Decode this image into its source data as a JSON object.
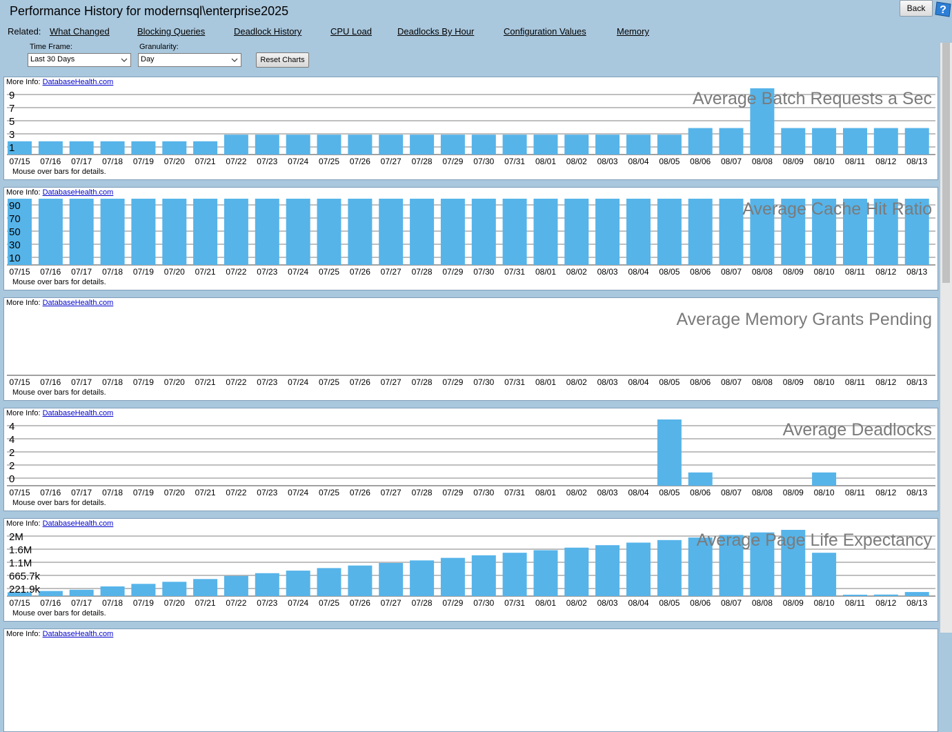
{
  "header": {
    "title": "Performance History for modernsql\\enterprise2025",
    "back_label": "Back",
    "related_label": "Related:",
    "related_links": [
      "What Changed",
      "Blocking Queries",
      "Deadlock History",
      "CPU Load",
      "Deadlocks By Hour",
      "Configuration Values",
      "Memory"
    ]
  },
  "filters": {
    "time_frame_label": "Time Frame:",
    "time_frame_value": "Last 30 Days",
    "granularity_label": "Granularity:",
    "granularity_value": "Day",
    "reset_label": "Reset Charts"
  },
  "panel_common": {
    "more_info_label": "More Info:",
    "more_info_link": "DatabaseHealth.com",
    "mouse_over_text": "Mouse over bars for details."
  },
  "colors": {
    "bar": "#56b4e9",
    "gridline": "#000000",
    "title": "#7b7b7b"
  },
  "chart_data": [
    {
      "type": "bar",
      "title": "Average Batch Requests a Sec",
      "categories": [
        "07/15",
        "07/16",
        "07/17",
        "07/18",
        "07/19",
        "07/20",
        "07/21",
        "07/22",
        "07/23",
        "07/24",
        "07/25",
        "07/26",
        "07/27",
        "07/28",
        "07/29",
        "07/30",
        "07/31",
        "08/01",
        "08/02",
        "08/03",
        "08/04",
        "08/05",
        "08/06",
        "08/07",
        "08/08",
        "08/09",
        "08/10",
        "08/11",
        "08/12",
        "08/13"
      ],
      "values": [
        2,
        2,
        2,
        2,
        2,
        2,
        2,
        3,
        3,
        3,
        3,
        3,
        3,
        3,
        3,
        3,
        3,
        3,
        3,
        3,
        3,
        3,
        4,
        4,
        10,
        4,
        4,
        4,
        4,
        4
      ],
      "y_ticks": [
        "1",
        "3",
        "5",
        "7",
        "9"
      ],
      "ylim": [
        0,
        10
      ],
      "grid": true
    },
    {
      "type": "bar",
      "title": "Average Cache Hit Ratio",
      "categories": [
        "07/15",
        "07/16",
        "07/17",
        "07/18",
        "07/19",
        "07/20",
        "07/21",
        "07/22",
        "07/23",
        "07/24",
        "07/25",
        "07/26",
        "07/27",
        "07/28",
        "07/29",
        "07/30",
        "07/31",
        "08/01",
        "08/02",
        "08/03",
        "08/04",
        "08/05",
        "08/06",
        "08/07",
        "08/08",
        "08/09",
        "08/10",
        "08/11",
        "08/12",
        "08/13"
      ],
      "values": [
        100,
        100,
        100,
        100,
        100,
        100,
        100,
        100,
        100,
        100,
        100,
        100,
        100,
        100,
        100,
        100,
        100,
        100,
        100,
        100,
        100,
        100,
        100,
        100,
        100,
        100,
        100,
        100,
        100,
        100
      ],
      "y_ticks": [
        "10",
        "30",
        "50",
        "70",
        "90"
      ],
      "ylim": [
        0,
        100
      ],
      "grid": true
    },
    {
      "type": "bar",
      "title": "Average Memory Grants Pending",
      "categories": [
        "07/15",
        "07/16",
        "07/17",
        "07/18",
        "07/19",
        "07/20",
        "07/21",
        "07/22",
        "07/23",
        "07/24",
        "07/25",
        "07/26",
        "07/27",
        "07/28",
        "07/29",
        "07/30",
        "07/31",
        "08/01",
        "08/02",
        "08/03",
        "08/04",
        "08/05",
        "08/06",
        "08/07",
        "08/08",
        "08/09",
        "08/10",
        "08/11",
        "08/12",
        "08/13"
      ],
      "values": [
        0,
        0,
        0,
        0,
        0,
        0,
        0,
        0,
        0,
        0,
        0,
        0,
        0,
        0,
        0,
        0,
        0,
        0,
        0,
        0,
        0,
        0,
        0,
        0,
        0,
        0,
        0,
        0,
        0,
        0
      ],
      "y_ticks": [],
      "ylim": [
        0,
        1
      ],
      "grid": false
    },
    {
      "type": "bar",
      "title": "Average Deadlocks",
      "categories": [
        "07/15",
        "07/16",
        "07/17",
        "07/18",
        "07/19",
        "07/20",
        "07/21",
        "07/22",
        "07/23",
        "07/24",
        "07/25",
        "07/26",
        "07/27",
        "07/28",
        "07/29",
        "07/30",
        "07/31",
        "08/01",
        "08/02",
        "08/03",
        "08/04",
        "08/05",
        "08/06",
        "08/07",
        "08/08",
        "08/09",
        "08/10",
        "08/11",
        "08/12",
        "08/13"
      ],
      "values": [
        0,
        0,
        0,
        0,
        0,
        0,
        0,
        0,
        0,
        0,
        0,
        0,
        0,
        0,
        0,
        0,
        0,
        0,
        0,
        0,
        0,
        5,
        1,
        0,
        0,
        0,
        1,
        0,
        0,
        0
      ],
      "y_ticks": [
        "0",
        "2",
        "2",
        "4",
        "4"
      ],
      "ylim": [
        0,
        5
      ],
      "grid": true
    },
    {
      "type": "bar",
      "title": "Average Page Life Expectancy",
      "categories": [
        "07/15",
        "07/16",
        "07/17",
        "07/18",
        "07/19",
        "07/20",
        "07/21",
        "07/22",
        "07/23",
        "07/24",
        "07/25",
        "07/26",
        "07/27",
        "07/28",
        "07/29",
        "07/30",
        "07/31",
        "08/01",
        "08/02",
        "08/03",
        "08/04",
        "08/05",
        "08/06",
        "08/07",
        "08/08",
        "08/09",
        "08/10",
        "08/11",
        "08/12",
        "08/13"
      ],
      "values": [
        150000,
        200000,
        250000,
        380000,
        480000,
        560000,
        670000,
        790000,
        900000,
        1000000,
        1100000,
        1200000,
        1300000,
        1400000,
        1500000,
        1600000,
        1700000,
        1800000,
        1900000,
        2000000,
        2100000,
        2200000,
        2300000,
        2400000,
        2500000,
        2600000,
        1700000,
        50000,
        60000,
        160000
      ],
      "y_ticks": [
        "221.9k",
        "665.7k",
        "1.1M",
        "1.6M",
        "2M"
      ],
      "ylim": [
        0,
        2600000
      ],
      "grid": true
    }
  ]
}
